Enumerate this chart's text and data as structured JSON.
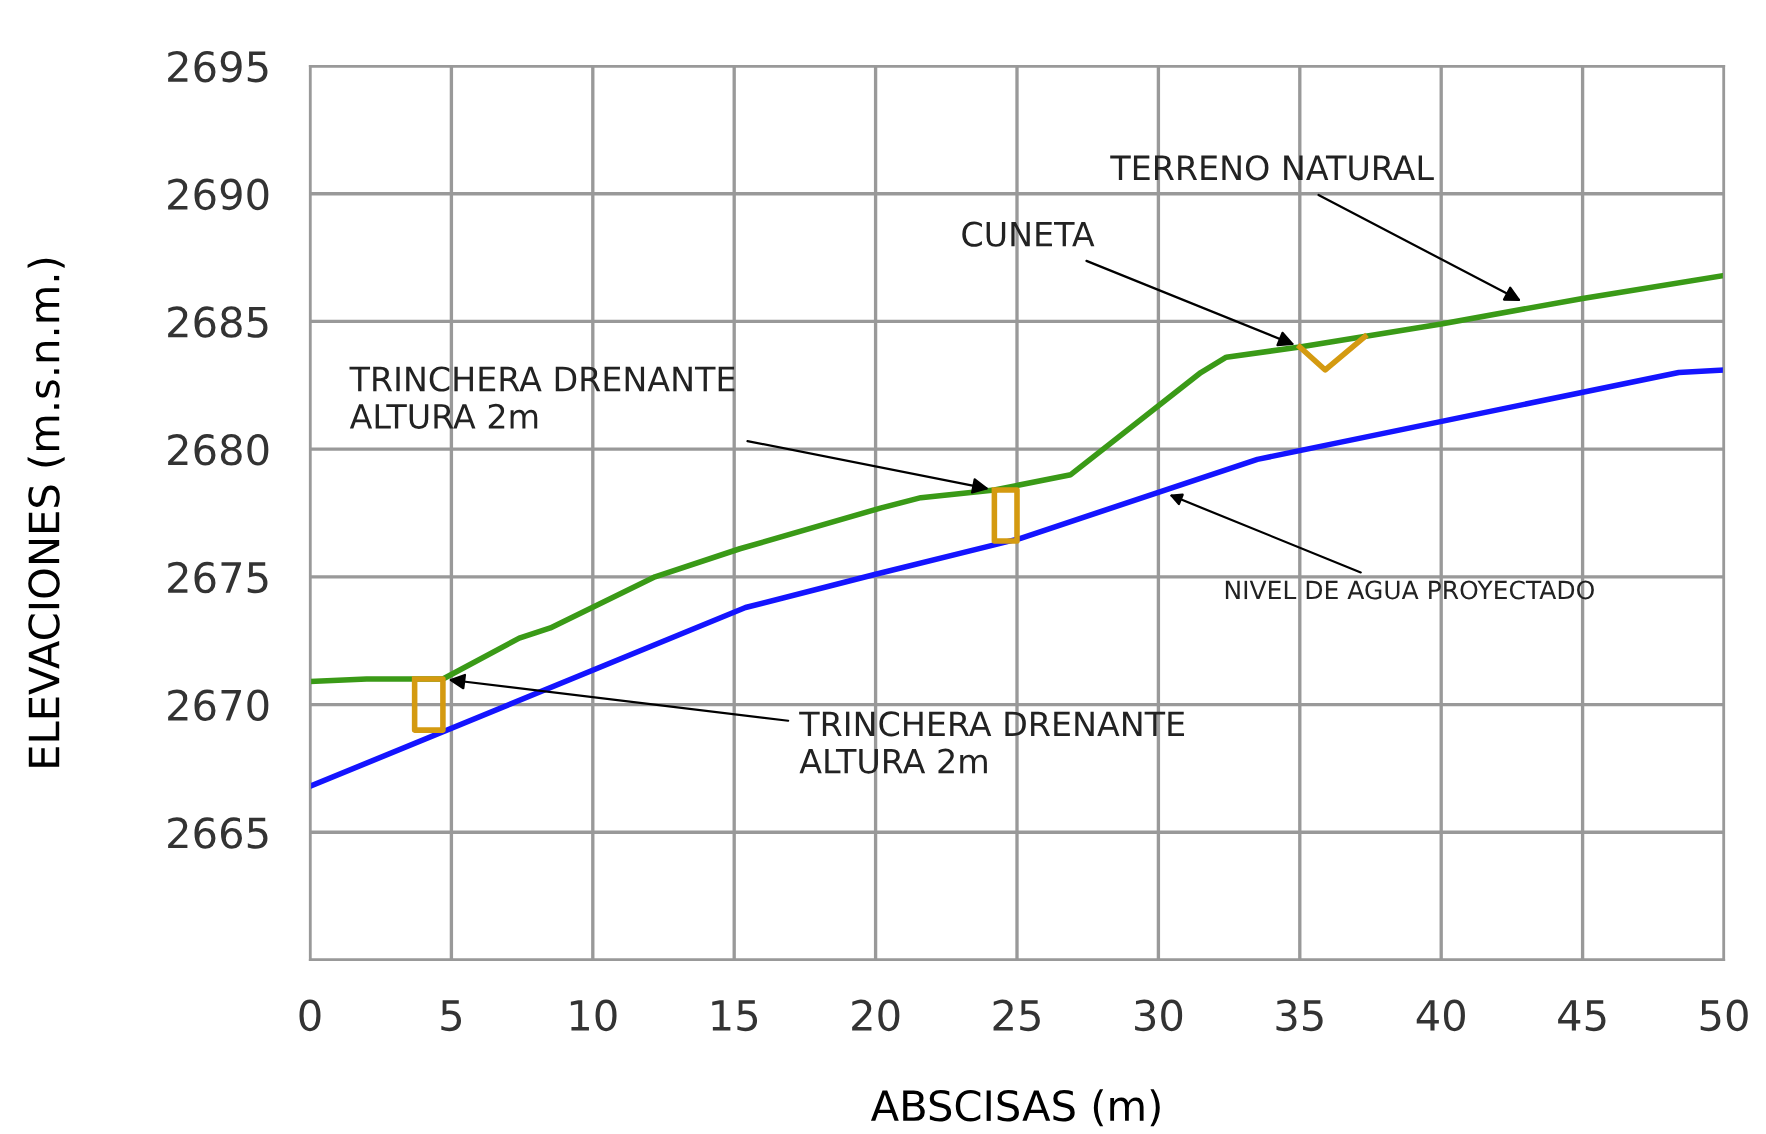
{
  "chart_data": {
    "type": "line",
    "xlabel": "ABSCISAS (m)",
    "ylabel": "ELEVACIONES (m.s.n.m.)",
    "xlim": [
      0,
      50
    ],
    "ylim": [
      2660,
      2695
    ],
    "xticks": [
      0,
      5,
      10,
      15,
      20,
      25,
      30,
      35,
      40,
      45,
      50
    ],
    "yticks": [
      {
        "value": 2660,
        "label": null
      },
      2665,
      2670,
      2675,
      2680,
      2685,
      2690,
      2695
    ],
    "grid": true,
    "marker": "none",
    "line_style": "solid",
    "series": [
      {
        "color": "#3a9a17",
        "x": [
          0,
          2,
          4.7,
          7.4,
          8.5,
          12.2,
          15.2,
          20.2,
          21.6,
          24.2,
          26.9,
          31.5,
          32.4,
          35,
          40,
          45,
          50
        ],
        "values": [
          2670.9,
          2671.0,
          2671.0,
          2672.6,
          2673.0,
          2675.0,
          2676.1,
          2677.7,
          2678.1,
          2678.4,
          2679.0,
          2683.0,
          2683.6,
          2684.0,
          2684.9,
          2685.9,
          2686.8
        ]
      },
      {
        "color": "#1414ff",
        "x": [
          0,
          15.4,
          20,
          25.1,
          33.5,
          48.4,
          50
        ],
        "values": [
          2666.8,
          2673.8,
          2675.1,
          2676.5,
          2679.6,
          2683.0,
          2683.1
        ]
      }
    ],
    "annotations": [
      {
        "text": "TRINCHERA DRENANTE\nALTURA 2m",
        "x": 4.7,
        "y": 2671.0
      },
      {
        "text": "TRINCHERA DRENANTE\nALTURA 2m",
        "x": 24.2,
        "y": 2678.4
      },
      {
        "text": "CUNETA",
        "x": 35,
        "y": 2684.0
      },
      {
        "text": "TERRENO NATURAL",
        "x": 43,
        "y": 2685.7
      },
      {
        "text": "NIVEL DE AGUA PROYECTADO",
        "x": 30.2,
        "y": 2678.3
      }
    ]
  }
}
